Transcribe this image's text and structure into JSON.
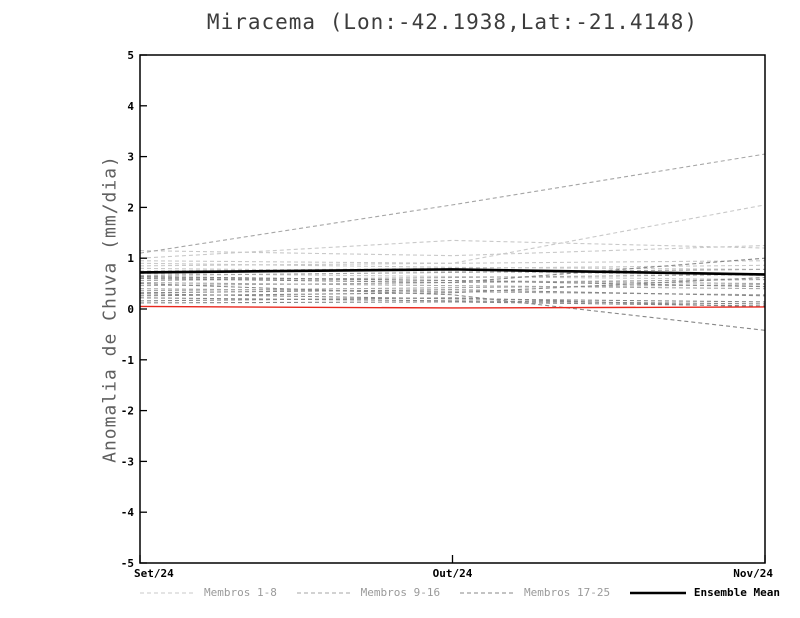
{
  "chart_data": {
    "type": "line",
    "title": "Miracema (Lon:-42.1938,Lat:-21.4148)",
    "ylabel": "Anomalia de Chuva (mm/dia)",
    "xlabel": "",
    "categories": [
      "Set/24",
      "Out/24",
      "Nov/24"
    ],
    "ylim": [
      -5,
      5
    ],
    "ytick_step": 1,
    "grid": false,
    "legend_position": "bottom",
    "groups": [
      {
        "name": "Membros 1-8",
        "color": "#c9c9c9",
        "dash": "4 3",
        "members": [
          [
            1.15,
            1.05,
            1.25
          ],
          [
            1.0,
            1.35,
            1.2
          ],
          [
            0.95,
            0.9,
            2.05
          ],
          [
            0.9,
            0.82,
            0.78
          ],
          [
            0.85,
            0.9,
            0.95
          ],
          [
            0.8,
            0.74,
            0.66
          ],
          [
            0.75,
            0.8,
            0.86
          ],
          [
            0.7,
            0.64,
            0.58
          ]
        ]
      },
      {
        "name": "Membros 9-16",
        "color": "#a6a6a6",
        "dash": "4 3",
        "members": [
          [
            1.1,
            2.05,
            3.05
          ],
          [
            0.66,
            0.72,
            0.78
          ],
          [
            0.62,
            0.56,
            0.5
          ],
          [
            0.56,
            0.62,
            0.68
          ],
          [
            0.52,
            0.46,
            0.4
          ],
          [
            0.46,
            0.52,
            0.58
          ],
          [
            0.4,
            0.34,
            0.28
          ],
          [
            0.36,
            0.42,
            0.48
          ]
        ]
      },
      {
        "name": "Membros 17-25",
        "color": "#878787",
        "dash": "4 3",
        "members": [
          [
            0.32,
            0.38,
            0.26
          ],
          [
            0.3,
            0.2,
            0.14
          ],
          [
            0.26,
            0.32,
            0.62
          ],
          [
            0.22,
            0.16,
            0.1
          ],
          [
            0.5,
            0.28,
            -0.42
          ],
          [
            0.16,
            0.22,
            0.04
          ],
          [
            0.6,
            0.52,
            1.0
          ],
          [
            0.12,
            0.14,
            0.06
          ],
          [
            0.64,
            0.56,
            0.44
          ]
        ]
      }
    ],
    "mean": {
      "name": "Ensemble Mean",
      "color": "#000000",
      "values": [
        0.72,
        0.78,
        0.68
      ]
    },
    "reference_line": {
      "color": "#e8281e",
      "values": [
        0.05,
        0.02,
        0.04
      ]
    },
    "axis_color": "#000000",
    "tick_label_color": "#000000"
  }
}
